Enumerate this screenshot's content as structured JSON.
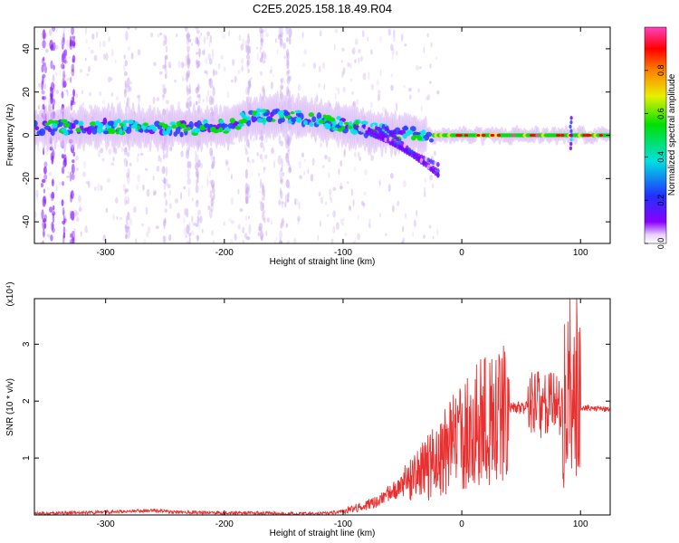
{
  "chart_data": [
    {
      "type": "heatmap",
      "title": "C2E5.2025.158.18.49.R04",
      "xlabel": "Height of straight line (km)",
      "ylabel": "Frequency (Hz)",
      "xlim": [
        -360,
        125
      ],
      "ylim": [
        -50,
        50
      ],
      "xticks": [
        -300,
        -200,
        -100,
        0,
        100
      ],
      "xtick_labels": [
        "-300",
        "-200",
        "-100",
        "0",
        "100"
      ],
      "yticks": [
        -40,
        -20,
        0,
        20,
        40
      ],
      "ytick_labels": [
        "-40",
        "-20",
        "0",
        "20",
        "40"
      ],
      "colorbar": {
        "label": "Normalized spectral amplitude",
        "range": [
          0,
          1
        ],
        "ticks": [
          0.0,
          0.2,
          0.4,
          0.6,
          0.8
        ],
        "tick_labels": [
          "0.0",
          "0.2",
          "0.4",
          "0.6",
          "0.8"
        ],
        "colormap": "rainbow",
        "colors": [
          "#ffffff",
          "#d9b8f5",
          "#7a00ff",
          "#2a40ff",
          "#00e5e5",
          "#00e000",
          "#f0f000",
          "#ff8000",
          "#ff0000",
          "#ff40c0"
        ]
      },
      "ridge": {
        "x": [
          -360,
          -320,
          -280,
          -240,
          -200,
          -175,
          -150,
          -125,
          -100,
          -75,
          -50,
          -30,
          -20,
          0,
          20,
          50,
          80,
          95,
          125
        ],
        "y": [
          3,
          4,
          4,
          3,
          4,
          9,
          9,
          7,
          5,
          2,
          1,
          0,
          0,
          0,
          0,
          0,
          0,
          0,
          0
        ]
      },
      "grid": false
    },
    {
      "type": "line",
      "title": "",
      "xlabel": "Height of straight line (km)",
      "ylabel": "SNR (10 * v/v)",
      "y_multiplier_label": "(x10⁴)",
      "xlim": [
        -360,
        125
      ],
      "ylim": [
        0,
        3.8
      ],
      "xticks": [
        -300,
        -200,
        -100,
        0,
        100
      ],
      "xtick_labels": [
        "-300",
        "-200",
        "-100",
        "0",
        "100"
      ],
      "yticks": [
        1,
        2,
        3
      ],
      "ytick_labels": [
        "1",
        "2",
        "3"
      ],
      "series": [
        {
          "color": "#e83030",
          "x": [
            -360,
            -340,
            -300,
            -260,
            -240,
            -200,
            -160,
            -140,
            -120,
            -100,
            -85,
            -75,
            -60,
            -45,
            -30,
            -20,
            -10,
            0,
            15,
            30,
            40,
            55,
            60,
            75,
            85,
            95,
            100,
            110,
            125
          ],
          "y": [
            0.02,
            0.03,
            0.05,
            0.08,
            0.05,
            0.04,
            0.03,
            0.02,
            0.02,
            0.06,
            0.15,
            0.2,
            0.4,
            0.55,
            0.8,
            1.0,
            1.2,
            1.4,
            1.6,
            1.8,
            1.85,
            1.9,
            1.95,
            1.95,
            1.9,
            1.9,
            1.88,
            1.88,
            1.85
          ]
        }
      ],
      "grid": false
    }
  ]
}
